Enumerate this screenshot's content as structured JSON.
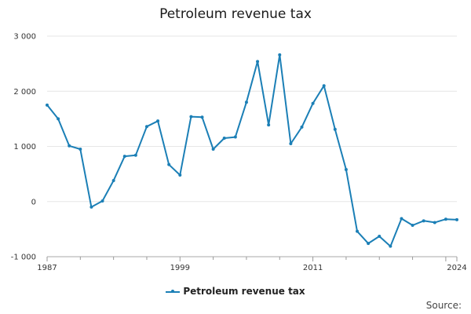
{
  "chart_data": {
    "type": "line",
    "title": "Petroleum revenue tax",
    "xlabel": "",
    "ylabel": "",
    "ylim": [
      -1000,
      3000
    ],
    "yticks": [
      -1000,
      0,
      1000,
      2000,
      3000
    ],
    "ytick_labels": [
      "-1 000",
      "0",
      "1 000",
      "2 000",
      "3 000"
    ],
    "xticks": [
      1987,
      1999,
      2011,
      2024
    ],
    "xtick_labels": [
      "1987",
      "1999",
      "2011",
      "2024"
    ],
    "xlim": [
      1987,
      2024
    ],
    "grid": "horizontal",
    "legend_position": "bottom",
    "x": [
      1987,
      1988,
      1989,
      1990,
      1991,
      1992,
      1993,
      1994,
      1995,
      1996,
      1997,
      1998,
      1999,
      2000,
      2001,
      2002,
      2003,
      2004,
      2005,
      2006,
      2007,
      2008,
      2009,
      2010,
      2011,
      2012,
      2013,
      2014,
      2015,
      2016,
      2017,
      2018,
      2019,
      2020,
      2021,
      2022,
      2023,
      2024
    ],
    "series": [
      {
        "name": "Petroleum revenue tax",
        "color": "#1b7fb6",
        "values": [
          1750,
          1500,
          1010,
          950,
          -100,
          10,
          380,
          820,
          840,
          1360,
          1460,
          670,
          480,
          1540,
          1530,
          950,
          1150,
          1170,
          1800,
          2540,
          1390,
          2660,
          1050,
          1350,
          1780,
          2100,
          1310,
          580,
          -540,
          -760,
          -630,
          -810,
          -310,
          -430,
          -350,
          -380,
          -320,
          -330
        ]
      }
    ]
  },
  "source": "Source:"
}
